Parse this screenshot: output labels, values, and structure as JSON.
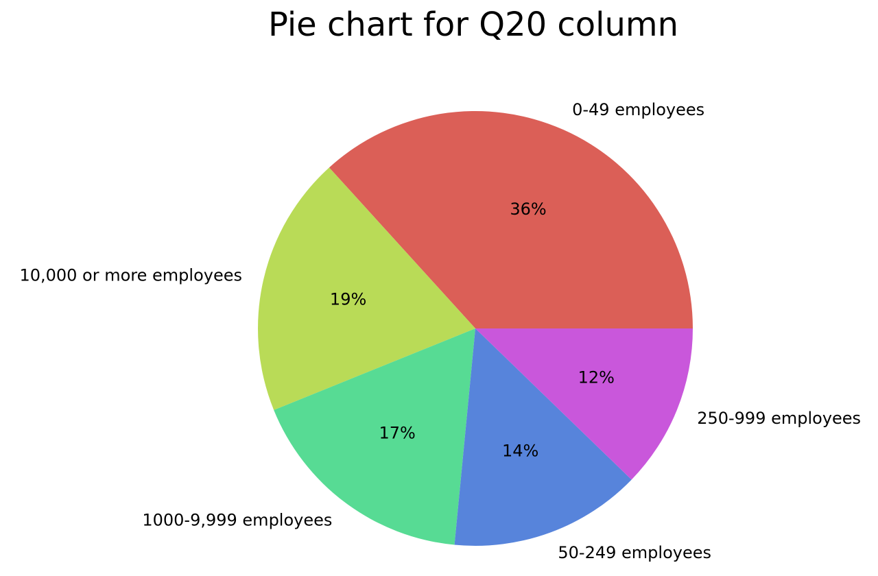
{
  "chart_data": {
    "type": "pie",
    "title": "Pie chart for Q20 column",
    "categories": [
      "0-49 employees",
      "10,000 or more employees",
      "1000-9,999 employees",
      "50-249 employees",
      "250-999 employees"
    ],
    "values": [
      36,
      19,
      17,
      14,
      12
    ],
    "value_labels": [
      "36%",
      "19%",
      "17%",
      "14%",
      "12%"
    ],
    "colors": [
      "#db5f57",
      "#b9db57",
      "#57db94",
      "#5784db",
      "#c957db"
    ],
    "start_angle_deg": 0,
    "direction": "counterclockwise",
    "legend": "none"
  }
}
